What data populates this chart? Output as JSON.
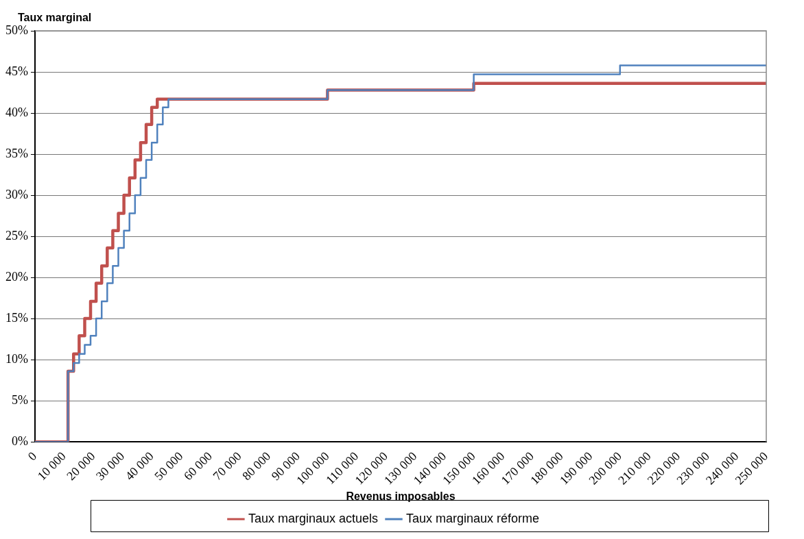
{
  "chart_data": {
    "type": "step",
    "xlabel": "Revenus imposables",
    "ylabel": "Taux marginal",
    "series": [
      {
        "name": "Taux marginaux actuels",
        "color": "#c0504d",
        "x": [
          0,
          11300,
          13200,
          15100,
          17000,
          19000,
          20900,
          22800,
          24700,
          26600,
          28500,
          30400,
          32300,
          34200,
          36100,
          38000,
          39900,
          41800,
          100000,
          150000,
          250000
        ],
        "values": [
          0,
          8.6,
          10.7,
          12.9,
          15.0,
          17.1,
          19.3,
          21.4,
          23.6,
          25.7,
          27.8,
          30.0,
          32.1,
          34.3,
          36.4,
          38.6,
          40.7,
          41.7,
          42.8,
          43.6,
          43.6
        ]
      },
      {
        "name": "Taux marginaux réforme",
        "color": "#4f81bd",
        "x": [
          0,
          11300,
          13200,
          15100,
          17000,
          19000,
          20900,
          22800,
          24700,
          26600,
          28500,
          30400,
          32300,
          34200,
          36100,
          38000,
          39900,
          41800,
          43700,
          45600,
          100000,
          150000,
          200000,
          250000
        ],
        "values": [
          0,
          8.6,
          9.6,
          10.7,
          11.8,
          12.9,
          15.0,
          17.1,
          19.3,
          21.4,
          23.6,
          25.7,
          27.8,
          30.0,
          32.1,
          34.3,
          36.4,
          38.6,
          40.7,
          41.7,
          42.8,
          44.7,
          45.8,
          45.8
        ]
      }
    ],
    "xlim": [
      0,
      250000
    ],
    "xticks": [
      0,
      {
        "value": 10000,
        "label": "10 000"
      },
      {
        "value": 20000,
        "label": "20 000"
      },
      {
        "value": 30000,
        "label": "30 000"
      },
      {
        "value": 40000,
        "label": "40 000"
      },
      {
        "value": 50000,
        "label": "50 000"
      },
      {
        "value": 60000,
        "label": "60 000"
      },
      {
        "value": 70000,
        "label": "70 000"
      },
      {
        "value": 80000,
        "label": "80 000"
      },
      {
        "value": 90000,
        "label": "90 000"
      },
      {
        "value": 100000,
        "label": "100 000"
      },
      {
        "value": 110000,
        "label": "110 000"
      },
      {
        "value": 120000,
        "label": "120 000"
      },
      {
        "value": 130000,
        "label": "130 000"
      },
      {
        "value": 140000,
        "label": "140 000"
      },
      {
        "value": 150000,
        "label": "150 000"
      },
      {
        "value": 160000,
        "label": "160 000"
      },
      {
        "value": 170000,
        "label": "170 000"
      },
      {
        "value": 180000,
        "label": "180 000"
      },
      {
        "value": 190000,
        "label": "190 000"
      },
      {
        "value": 200000,
        "label": "200 000"
      },
      {
        "value": 210000,
        "label": "210 000"
      },
      {
        "value": 220000,
        "label": "220 000"
      },
      {
        "value": 230000,
        "label": "230 000"
      },
      {
        "value": 240000,
        "label": "240 000"
      },
      {
        "value": 250000,
        "label": "250 000"
      }
    ],
    "ylim": [
      0,
      50
    ],
    "yticks": [
      {
        "value": 0,
        "label": "0%"
      },
      {
        "value": 5,
        "label": "5%"
      },
      {
        "value": 10,
        "label": "10%"
      },
      {
        "value": 15,
        "label": "15%"
      },
      {
        "value": 20,
        "label": "20%"
      },
      {
        "value": 25,
        "label": "25%"
      },
      {
        "value": 30,
        "label": "30%"
      },
      {
        "value": 35,
        "label": "35%"
      },
      {
        "value": 40,
        "label": "40%"
      },
      {
        "value": 45,
        "label": "45%"
      },
      {
        "value": 50,
        "label": "50%"
      }
    ],
    "grid": "y",
    "legend": "bottom",
    "line_style": "solid",
    "marker": "none"
  }
}
